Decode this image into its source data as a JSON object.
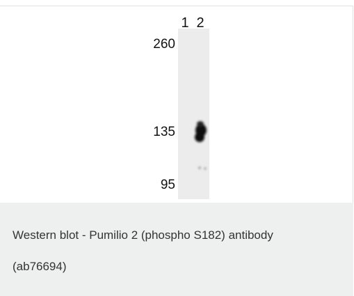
{
  "figure": {
    "lane_labels": [
      "1",
      "2"
    ],
    "mw_markers": [
      "260",
      "135",
      "95"
    ]
  },
  "caption": {
    "lines": [
      "Western blot - Pumilio 2 (phospho S182) antibody",
      "(ab76694)"
    ]
  }
}
